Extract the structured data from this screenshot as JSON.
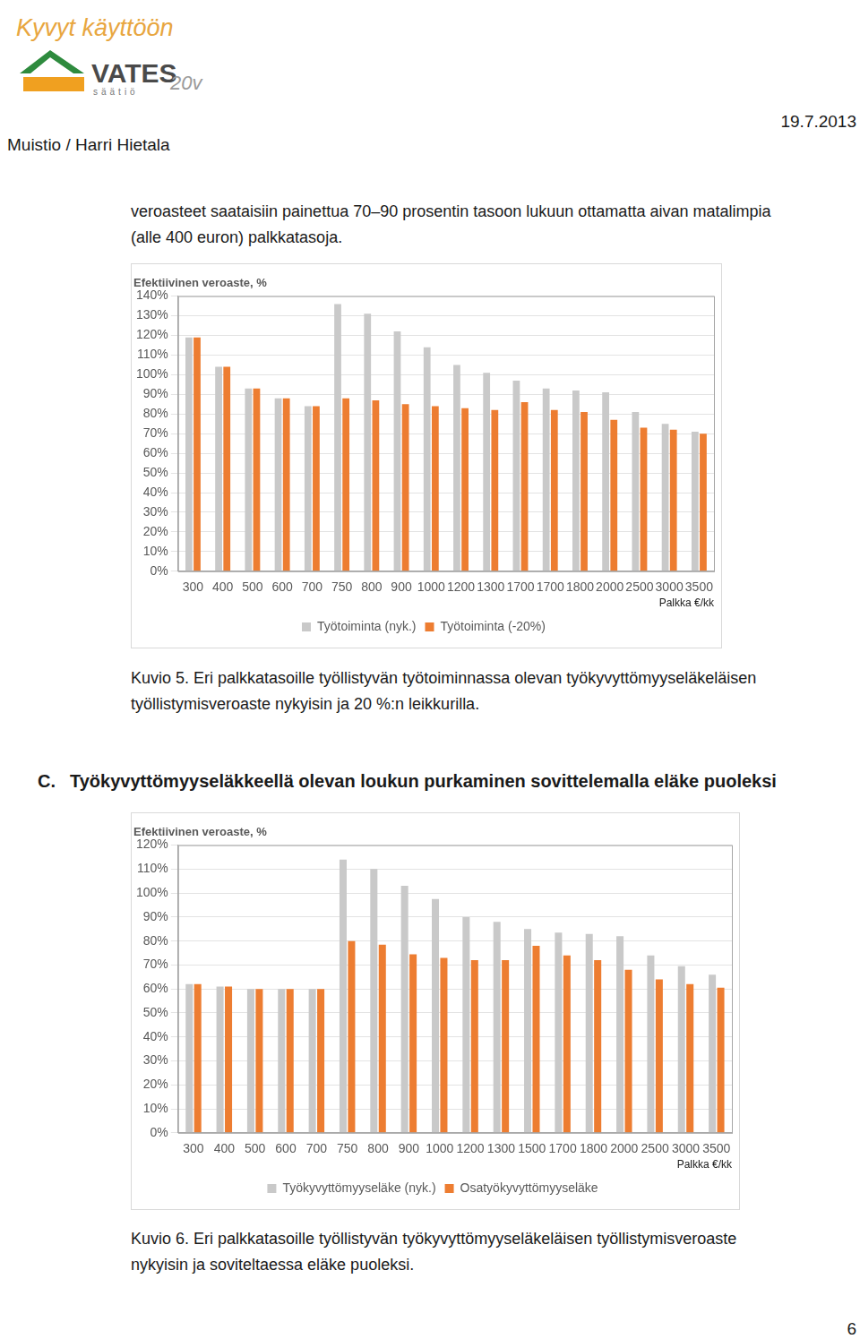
{
  "header": {
    "logo": {
      "title": "Kyvyt käyttöön",
      "brand": "VATES",
      "subtitle": "säätiö",
      "badge": "20v"
    },
    "left": "Muistio / Harri Hietala",
    "date": "19.7.2013"
  },
  "paragraph": [
    "veroasteet saataisiin painettua 70–90 prosentin tasoon lukuun ottamatta aivan matalimpia",
    "(alle 400 euron) palkkatasoja."
  ],
  "chart_data": [
    {
      "type": "bar",
      "title": "Efektiivinen veroaste, %",
      "x_label": "Palkka €/kk",
      "categories": [
        "300",
        "400",
        "500",
        "600",
        "700",
        "750",
        "800",
        "900",
        "1000",
        "1200",
        "1300",
        "1700",
        "1700",
        "1800",
        "2000",
        "2500",
        "3000",
        "3500"
      ],
      "series": [
        {
          "name": "Työtoiminta (nyk.)",
          "color": "#c9c9c9",
          "values": [
            119,
            104,
            93,
            88,
            84,
            136,
            131,
            122,
            114,
            105,
            101,
            97,
            93,
            92,
            91,
            81,
            75,
            71
          ]
        },
        {
          "name": "Työtoiminta (-20%)",
          "color": "#ed7d31",
          "values": [
            119,
            104,
            93,
            88,
            84,
            88,
            87,
            85,
            84,
            83,
            82,
            86,
            82,
            81,
            77,
            73,
            72,
            70
          ]
        }
      ],
      "ylim": [
        0,
        140
      ],
      "yticks": [
        {
          "value": 0,
          "label": "0%"
        },
        {
          "value": 10,
          "label": "10%"
        },
        {
          "value": 20,
          "label": "20%"
        },
        {
          "value": 30,
          "label": "30%"
        },
        {
          "value": 40,
          "label": "40%"
        },
        {
          "value": 50,
          "label": "50%"
        },
        {
          "value": 60,
          "label": "60%"
        },
        {
          "value": 70,
          "label": "70%"
        },
        {
          "value": 80,
          "label": "80%"
        },
        {
          "value": 90,
          "label": "90%"
        },
        {
          "value": 100,
          "label": "100%"
        },
        {
          "value": 110,
          "label": "110%"
        },
        {
          "value": 120,
          "label": "120%"
        },
        {
          "value": 130,
          "label": "130%"
        },
        {
          "value": 140,
          "label": "140%"
        }
      ],
      "grid": true,
      "legend": "bottom",
      "caption": [
        "Kuvio 5. Eri palkkatasoille työllistyvän työtoiminnassa olevan työkyvyttömyyseläkeläisen",
        "työllistymisveroaste nykyisin ja 20 %:n leikkurilla."
      ]
    },
    {
      "type": "bar",
      "title": "Efektiivinen veroaste, %",
      "x_label": "Palkka €/kk",
      "categories": [
        "300",
        "400",
        "500",
        "600",
        "700",
        "750",
        "800",
        "900",
        "1000",
        "1200",
        "1300",
        "1500",
        "1700",
        "1800",
        "2000",
        "2500",
        "3000",
        "3500"
      ],
      "series": [
        {
          "name": "Työkyvyttömyyseläke (nyk.)",
          "color": "#c9c9c9",
          "values": [
            62,
            61,
            60,
            60,
            60,
            114,
            110,
            103,
            97.5,
            90,
            88,
            85,
            83.5,
            83,
            82,
            74,
            69.5,
            66
          ]
        },
        {
          "name": "Osatyökyvyttömyyseläke",
          "color": "#ed7d31",
          "values": [
            62,
            61,
            60,
            60,
            60,
            80,
            78.5,
            74.5,
            73,
            72,
            72,
            78,
            74,
            72,
            68,
            64,
            62,
            60.5
          ]
        }
      ],
      "ylim": [
        0,
        120
      ],
      "yticks": [
        {
          "value": 0,
          "label": "0%"
        },
        {
          "value": 10,
          "label": "10%"
        },
        {
          "value": 20,
          "label": "20%"
        },
        {
          "value": 30,
          "label": "30%"
        },
        {
          "value": 40,
          "label": "40%"
        },
        {
          "value": 50,
          "label": "50%"
        },
        {
          "value": 60,
          "label": "60%"
        },
        {
          "value": 70,
          "label": "70%"
        },
        {
          "value": 80,
          "label": "80%"
        },
        {
          "value": 90,
          "label": "90%"
        },
        {
          "value": 100,
          "label": "100%"
        },
        {
          "value": 110,
          "label": "110%"
        },
        {
          "value": 120,
          "label": "120%"
        }
      ],
      "grid": true,
      "legend": "bottom",
      "caption": [
        "Kuvio 6. Eri palkkatasoille työllistyvän työkyvyttömyyseläkeläisen työllistymisveroaste",
        "nykyisin ja soviteltaessa eläke puoleksi."
      ]
    }
  ],
  "section": {
    "number": "C.",
    "title": "Työkyvyttömyyseläkkeellä olevan loukun purkaminen sovittelemalla eläke puoleksi"
  },
  "page_number": 6
}
